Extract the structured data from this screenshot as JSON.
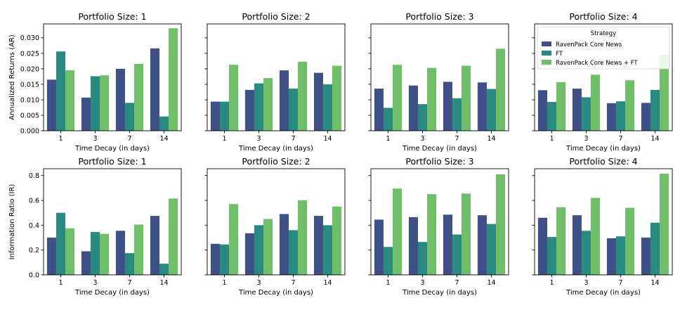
{
  "legend": {
    "title": "Strategy",
    "placement": "upper-right of top-right panel"
  },
  "colors": {
    "RavenPack Core News": "#3f5086",
    "FT": "#2a8a81",
    "RavenPack Core News + FT": "#6fbf6a"
  },
  "chart_data": [
    {
      "type": "bar",
      "row": 0,
      "col": 0,
      "title": "Portfolio Size: 1",
      "xlabel": "Time Decay (in days)",
      "ylabel": "Annualized Returns (AR)",
      "categories": [
        "1",
        "3",
        "7",
        "14"
      ],
      "ylim": [
        0,
        0.0345
      ],
      "yticks": [
        0.0,
        0.005,
        0.01,
        0.015,
        0.02,
        0.025,
        0.03
      ],
      "ytick_labels": [
        "0.000",
        "0.005",
        "0.010",
        "0.015",
        "0.020",
        "0.025",
        "0.030"
      ],
      "series": [
        {
          "name": "RavenPack Core News",
          "values": [
            0.0165,
            0.0107,
            0.02,
            0.0266
          ]
        },
        {
          "name": "FT",
          "values": [
            0.0256,
            0.0176,
            0.009,
            0.0046
          ]
        },
        {
          "name": "RavenPack Core News + FT",
          "values": [
            0.0195,
            0.0179,
            0.0216,
            0.0331
          ]
        }
      ]
    },
    {
      "type": "bar",
      "row": 0,
      "col": 1,
      "title": "Portfolio Size: 2",
      "xlabel": "Time Decay (in days)",
      "ylabel": "",
      "categories": [
        "1",
        "3",
        "7",
        "14"
      ],
      "ylim": [
        0,
        0.0345
      ],
      "series": [
        {
          "name": "RavenPack Core News",
          "values": [
            0.0094,
            0.0132,
            0.0195,
            0.0187
          ]
        },
        {
          "name": "FT",
          "values": [
            0.0094,
            0.0153,
            0.0136,
            0.015
          ]
        },
        {
          "name": "RavenPack Core News + FT",
          "values": [
            0.0213,
            0.017,
            0.0223,
            0.021
          ]
        }
      ]
    },
    {
      "type": "bar",
      "row": 0,
      "col": 2,
      "title": "Portfolio Size: 3",
      "xlabel": "Time Decay (in days)",
      "ylabel": "",
      "categories": [
        "1",
        "3",
        "7",
        "14"
      ],
      "ylim": [
        0,
        0.0345
      ],
      "series": [
        {
          "name": "RavenPack Core News",
          "values": [
            0.0136,
            0.0146,
            0.0158,
            0.0156
          ]
        },
        {
          "name": "FT",
          "values": [
            0.0074,
            0.0086,
            0.0105,
            0.0135
          ]
        },
        {
          "name": "RavenPack Core News + FT",
          "values": [
            0.0213,
            0.0203,
            0.021,
            0.0265
          ]
        }
      ]
    },
    {
      "type": "bar",
      "row": 0,
      "col": 3,
      "title": "Portfolio Size: 4",
      "xlabel": "Time Decay (in days)",
      "ylabel": "",
      "categories": [
        "1",
        "3",
        "7",
        "14"
      ],
      "ylim": [
        0,
        0.0345
      ],
      "series": [
        {
          "name": "RavenPack Core News",
          "values": [
            0.0131,
            0.0136,
            0.0089,
            0.009
          ]
        },
        {
          "name": "FT",
          "values": [
            0.0093,
            0.0108,
            0.0095,
            0.0132
          ]
        },
        {
          "name": "RavenPack Core News + FT",
          "values": [
            0.0157,
            0.0181,
            0.0163,
            0.0245
          ]
        }
      ]
    },
    {
      "type": "bar",
      "row": 1,
      "col": 0,
      "title": "Portfolio Size: 1",
      "xlabel": "Time Decay (in days)",
      "ylabel": "Information Ratio (IR)",
      "categories": [
        "1",
        "3",
        "7",
        "14"
      ],
      "ylim": [
        0,
        0.855
      ],
      "yticks": [
        0.0,
        0.2,
        0.4,
        0.6,
        0.8
      ],
      "ytick_labels": [
        "0.0",
        "0.2",
        "0.4",
        "0.6",
        "0.8"
      ],
      "series": [
        {
          "name": "RavenPack Core News",
          "values": [
            0.3,
            0.19,
            0.355,
            0.475
          ]
        },
        {
          "name": "FT",
          "values": [
            0.5,
            0.345,
            0.175,
            0.09
          ]
        },
        {
          "name": "RavenPack Core News + FT",
          "values": [
            0.375,
            0.33,
            0.405,
            0.615
          ]
        }
      ]
    },
    {
      "type": "bar",
      "row": 1,
      "col": 1,
      "title": "Portfolio Size: 2",
      "xlabel": "Time Decay (in days)",
      "ylabel": "",
      "categories": [
        "1",
        "3",
        "7",
        "14"
      ],
      "ylim": [
        0,
        0.855
      ],
      "series": [
        {
          "name": "RavenPack Core News",
          "values": [
            0.25,
            0.335,
            0.49,
            0.475
          ]
        },
        {
          "name": "FT",
          "values": [
            0.245,
            0.4,
            0.36,
            0.4
          ]
        },
        {
          "name": "RavenPack Core News + FT",
          "values": [
            0.57,
            0.45,
            0.6,
            0.55
          ]
        }
      ]
    },
    {
      "type": "bar",
      "row": 1,
      "col": 2,
      "title": "Portfolio Size: 3",
      "xlabel": "Time Decay (in days)",
      "ylabel": "",
      "categories": [
        "1",
        "3",
        "7",
        "14"
      ],
      "ylim": [
        0,
        0.855
      ],
      "series": [
        {
          "name": "RavenPack Core News",
          "values": [
            0.445,
            0.465,
            0.485,
            0.48
          ]
        },
        {
          "name": "FT",
          "values": [
            0.225,
            0.265,
            0.325,
            0.41
          ]
        },
        {
          "name": "RavenPack Core News + FT",
          "values": [
            0.695,
            0.65,
            0.655,
            0.81
          ]
        }
      ]
    },
    {
      "type": "bar",
      "row": 1,
      "col": 3,
      "title": "Portfolio Size: 4",
      "xlabel": "Time Decay (in days)",
      "ylabel": "",
      "categories": [
        "1",
        "3",
        "7",
        "14"
      ],
      "ylim": [
        0,
        0.855
      ],
      "series": [
        {
          "name": "RavenPack Core News",
          "values": [
            0.46,
            0.48,
            0.295,
            0.3
          ]
        },
        {
          "name": "FT",
          "values": [
            0.305,
            0.355,
            0.31,
            0.42
          ]
        },
        {
          "name": "RavenPack Core News + FT",
          "values": [
            0.545,
            0.62,
            0.54,
            0.815
          ]
        }
      ]
    }
  ]
}
